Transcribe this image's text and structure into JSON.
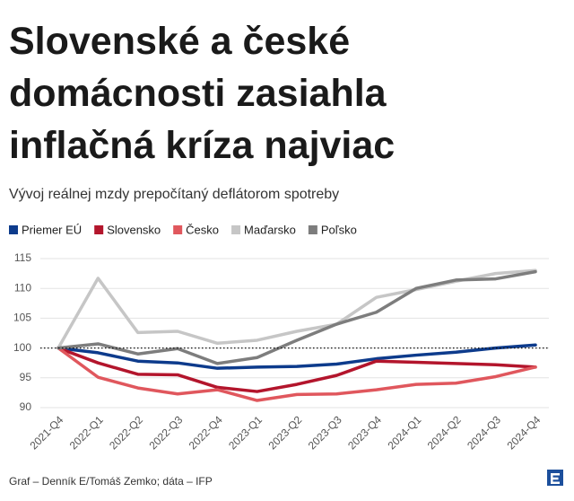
{
  "chart_data": {
    "type": "line",
    "title": [
      "Slovenské a české",
      "domácnosti zasiahla",
      "inflačná kríza najviac"
    ],
    "subtitle": "Vývoj reálnej mzdy prepočítaný deflátorom spotreby",
    "source": "Graf – Denník E/Tomáš Zemko; dáta – IFP",
    "categories": [
      "2021-Q4",
      "2022-Q1",
      "2022-Q2",
      "2022-Q3",
      "2022-Q4",
      "2023-Q1",
      "2023-Q2",
      "2023-Q3",
      "2023-Q4",
      "2024-Q1",
      "2024-Q2",
      "2024-Q3",
      "2024-Q4"
    ],
    "series": [
      {
        "name": "Priemer EÚ",
        "color": "#0d3b8c",
        "values": [
          100,
          99.2,
          97.8,
          97.5,
          96.6,
          96.8,
          96.9,
          97.3,
          98.2,
          98.8,
          99.3,
          100.0,
          100.5
        ]
      },
      {
        "name": "Slovensko",
        "color": "#b3152c",
        "values": [
          100,
          97.5,
          95.6,
          95.5,
          93.4,
          92.7,
          93.9,
          95.4,
          97.8,
          97.6,
          97.4,
          97.2,
          96.8
        ]
      },
      {
        "name": "Česko",
        "color": "#e0575d",
        "values": [
          100,
          95.1,
          93.3,
          92.3,
          93.0,
          91.2,
          92.2,
          92.3,
          93.0,
          93.9,
          94.1,
          95.2,
          96.8
        ]
      },
      {
        "name": "Maďarsko",
        "color": "#c6c6c6",
        "values": [
          100,
          111.7,
          102.6,
          102.8,
          100.8,
          101.3,
          102.8,
          104.0,
          108.5,
          109.8,
          111.2,
          112.5,
          113.0
        ]
      },
      {
        "name": "Poľsko",
        "color": "#7d7d7d",
        "values": [
          100,
          100.7,
          99.0,
          99.9,
          97.4,
          98.4,
          101.3,
          104.0,
          106.0,
          110.0,
          111.4,
          111.6,
          112.8
        ]
      }
    ],
    "reference_line": 100,
    "ylim": [
      90,
      115
    ],
    "yticks": [
      90,
      95,
      100,
      105,
      110,
      115
    ],
    "grid": true
  }
}
